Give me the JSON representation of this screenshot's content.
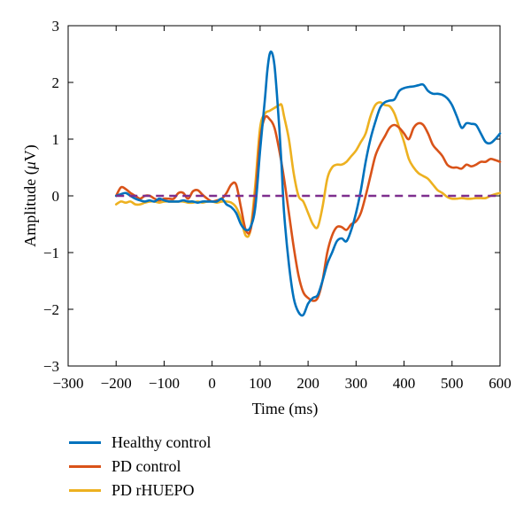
{
  "chart_data": {
    "type": "line",
    "xlabel": "Time (ms)",
    "ylabel": "Amplitude (",
    "ylabel_unit_symbol": "μ",
    "ylabel_unit_rest": "V)",
    "xlim": [
      -300,
      600
    ],
    "ylim": [
      -3,
      3
    ],
    "xticks": [
      -300,
      -200,
      -100,
      0,
      100,
      200,
      300,
      400,
      500,
      600
    ],
    "xtick_labels": [
      "−300",
      "−200",
      "−100",
      "0",
      "100",
      "200",
      "300",
      "400",
      "500",
      "600"
    ],
    "yticks": [
      -3,
      -2,
      -1,
      0,
      1,
      2,
      3
    ],
    "ytick_labels": [
      "−3",
      "−2",
      "−1",
      "0",
      "1",
      "2",
      "3"
    ],
    "grid": false,
    "legend_position": "below",
    "series": [
      {
        "name": "Healthy control",
        "color": "#0072BD",
        "x": [
          -200,
          -190,
          -180,
          -170,
          -160,
          -150,
          -140,
          -130,
          -120,
          -110,
          -100,
          -90,
          -80,
          -70,
          -60,
          -50,
          -40,
          -30,
          -20,
          -10,
          0,
          10,
          20,
          30,
          40,
          50,
          60,
          70,
          80,
          90,
          100,
          110,
          115,
          120,
          125,
          130,
          135,
          140,
          145,
          150,
          160,
          170,
          180,
          190,
          200,
          210,
          220,
          230,
          240,
          250,
          260,
          270,
          280,
          290,
          300,
          310,
          320,
          330,
          340,
          350,
          360,
          370,
          380,
          390,
          400,
          410,
          420,
          430,
          440,
          450,
          460,
          470,
          480,
          490,
          500,
          510,
          520,
          530,
          540,
          550,
          560,
          570,
          580,
          590,
          600
        ],
        "y": [
          0.0,
          0.03,
          0.05,
          0.0,
          -0.05,
          -0.08,
          -0.1,
          -0.08,
          -0.1,
          -0.05,
          -0.08,
          -0.1,
          -0.1,
          -0.1,
          -0.08,
          -0.1,
          -0.1,
          -0.12,
          -0.1,
          -0.1,
          -0.1,
          -0.1,
          -0.05,
          -0.15,
          -0.2,
          -0.3,
          -0.5,
          -0.6,
          -0.55,
          -0.2,
          0.8,
          1.7,
          2.2,
          2.5,
          2.52,
          2.3,
          1.8,
          1.2,
          0.5,
          -0.3,
          -1.2,
          -1.8,
          -2.05,
          -2.1,
          -1.9,
          -1.8,
          -1.75,
          -1.5,
          -1.2,
          -1.0,
          -0.8,
          -0.75,
          -0.8,
          -0.6,
          -0.3,
          0.1,
          0.6,
          1.0,
          1.3,
          1.55,
          1.65,
          1.68,
          1.7,
          1.85,
          1.9,
          1.92,
          1.93,
          1.95,
          1.96,
          1.85,
          1.8,
          1.8,
          1.78,
          1.72,
          1.6,
          1.4,
          1.2,
          1.28,
          1.27,
          1.25,
          1.1,
          0.95,
          0.93,
          1.0,
          1.1
        ]
      },
      {
        "name": "PD control",
        "color": "#D95319",
        "x": [
          -200,
          -190,
          -180,
          -170,
          -160,
          -150,
          -140,
          -130,
          -120,
          -110,
          -100,
          -90,
          -80,
          -70,
          -60,
          -50,
          -40,
          -30,
          -20,
          -10,
          0,
          10,
          20,
          30,
          40,
          50,
          60,
          70,
          80,
          90,
          100,
          110,
          120,
          130,
          140,
          150,
          160,
          170,
          180,
          190,
          200,
          210,
          220,
          230,
          240,
          250,
          260,
          270,
          280,
          290,
          300,
          310,
          320,
          330,
          340,
          350,
          360,
          370,
          380,
          390,
          400,
          410,
          420,
          430,
          440,
          450,
          460,
          470,
          480,
          490,
          500,
          510,
          520,
          530,
          540,
          550,
          560,
          570,
          580,
          590,
          600
        ],
        "y": [
          0.0,
          0.15,
          0.12,
          0.05,
          0.0,
          -0.05,
          0.0,
          0.0,
          -0.05,
          -0.08,
          -0.05,
          -0.05,
          -0.05,
          0.05,
          0.05,
          -0.05,
          0.08,
          0.1,
          0.02,
          -0.05,
          -0.1,
          -0.08,
          -0.05,
          0.05,
          0.2,
          0.2,
          -0.2,
          -0.6,
          -0.6,
          0.0,
          1.0,
          1.38,
          1.35,
          1.2,
          0.8,
          0.3,
          -0.3,
          -0.9,
          -1.4,
          -1.7,
          -1.8,
          -1.85,
          -1.8,
          -1.5,
          -1.0,
          -0.7,
          -0.55,
          -0.55,
          -0.6,
          -0.5,
          -0.45,
          -0.3,
          0.0,
          0.35,
          0.7,
          0.9,
          1.05,
          1.2,
          1.25,
          1.2,
          1.1,
          1.0,
          1.2,
          1.28,
          1.25,
          1.1,
          0.9,
          0.8,
          0.7,
          0.55,
          0.5,
          0.5,
          0.48,
          0.55,
          0.52,
          0.55,
          0.6,
          0.6,
          0.65,
          0.63,
          0.6
        ]
      },
      {
        "name": "PD rHUEPO",
        "color": "#EDB120",
        "x": [
          -200,
          -190,
          -180,
          -170,
          -160,
          -150,
          -140,
          -130,
          -120,
          -110,
          -100,
          -90,
          -80,
          -70,
          -60,
          -50,
          -40,
          -30,
          -20,
          -10,
          0,
          10,
          20,
          30,
          40,
          50,
          60,
          70,
          80,
          90,
          100,
          110,
          120,
          130,
          140,
          145,
          150,
          160,
          170,
          180,
          190,
          200,
          210,
          220,
          230,
          240,
          250,
          260,
          270,
          280,
          290,
          300,
          310,
          320,
          330,
          340,
          350,
          360,
          370,
          380,
          390,
          400,
          410,
          420,
          430,
          440,
          450,
          460,
          470,
          480,
          490,
          500,
          510,
          520,
          530,
          540,
          550,
          560,
          570,
          580,
          590,
          600
        ],
        "y": [
          -0.15,
          -0.1,
          -0.12,
          -0.1,
          -0.15,
          -0.15,
          -0.12,
          -0.1,
          -0.1,
          -0.12,
          -0.1,
          -0.1,
          -0.1,
          -0.1,
          -0.1,
          -0.12,
          -0.12,
          -0.1,
          -0.12,
          -0.1,
          -0.1,
          -0.12,
          -0.1,
          -0.1,
          -0.12,
          -0.2,
          -0.4,
          -0.7,
          -0.6,
          0.2,
          1.2,
          1.45,
          1.5,
          1.55,
          1.6,
          1.6,
          1.4,
          1.0,
          0.4,
          0.0,
          -0.1,
          -0.3,
          -0.5,
          -0.55,
          -0.2,
          0.3,
          0.5,
          0.55,
          0.55,
          0.6,
          0.7,
          0.8,
          0.95,
          1.1,
          1.4,
          1.6,
          1.65,
          1.6,
          1.58,
          1.45,
          1.2,
          0.95,
          0.65,
          0.5,
          0.4,
          0.35,
          0.3,
          0.2,
          0.1,
          0.05,
          -0.02,
          -0.05,
          -0.05,
          -0.04,
          -0.05,
          -0.05,
          -0.04,
          -0.04,
          -0.04,
          0.0,
          0.03,
          0.05
        ]
      }
    ],
    "reference_line": {
      "y": 0,
      "style": "dashed",
      "color": "#7E2F8E",
      "x_range": [
        -200,
        600
      ]
    }
  }
}
